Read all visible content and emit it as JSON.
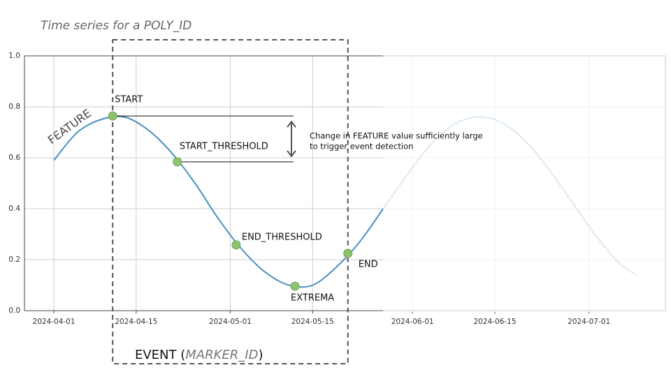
{
  "chart_data": {
    "type": "line",
    "title": "Time series for a POLY_ID",
    "y_label": "FEATURE",
    "x": [
      "2024-04-01",
      "2024-04-05",
      "2024-04-09",
      "2024-04-13",
      "2024-04-17",
      "2024-04-21",
      "2024-04-25",
      "2024-04-29",
      "2024-05-03",
      "2024-05-07",
      "2024-05-11",
      "2024-05-15",
      "2024-05-19",
      "2024-05-23",
      "2024-05-27",
      "2024-05-31",
      "2024-06-04",
      "2024-06-08",
      "2024-06-12",
      "2024-06-16",
      "2024-06-20",
      "2024-06-24",
      "2024-06-28",
      "2024-07-02",
      "2024-07-06",
      "2024-07-09"
    ],
    "series": [
      {
        "color": "#4a90c0",
        "values": [
          0.59,
          0.7,
          0.75,
          0.76,
          0.71,
          0.62,
          0.5,
          0.36,
          0.24,
          0.15,
          0.1,
          0.1,
          0.17,
          0.27,
          0.4,
          null,
          null,
          null,
          null,
          null,
          null,
          null,
          null,
          null,
          null,
          null
        ]
      },
      {
        "color": "#dce9f2",
        "values": [
          null,
          null,
          null,
          null,
          null,
          null,
          null,
          null,
          null,
          null,
          null,
          null,
          null,
          null,
          0.4,
          0.53,
          0.65,
          0.73,
          0.76,
          0.74,
          0.67,
          0.56,
          0.43,
          0.3,
          0.19,
          0.14
        ]
      }
    ],
    "markers": {
      "color": "#8dc26f",
      "labels": [
        "START",
        "START_THRESHOLD",
        "END_THRESHOLD",
        "EXTREMA",
        "END"
      ],
      "x": [
        "2024-04-11",
        "2024-04-22",
        "2024-05-02",
        "2024-05-12",
        "2024-05-21"
      ],
      "values": [
        0.764,
        0.584,
        0.258,
        0.096,
        0.225
      ]
    },
    "annotation": [
      "Change in FEATURE value sufficiently large",
      "to trigger event detection"
    ],
    "event_label": [
      "EVENT (",
      "MARKER_ID",
      ")"
    ],
    "xlim": [
      "2024-03-27",
      "2024-07-14"
    ],
    "xticks": [
      "2024-04-01",
      "2024-04-15",
      "2024-05-01",
      "2024-05-15",
      "2024-06-01",
      "2024-06-15",
      "2024-07-01"
    ],
    "ylim": [
      0,
      1
    ],
    "yticks": [
      {
        "value": 0,
        "label": "0.0"
      },
      0.2,
      0.4,
      0.6,
      0.8,
      {
        "value": 1,
        "label": "1.0"
      }
    ],
    "grid": true
  }
}
